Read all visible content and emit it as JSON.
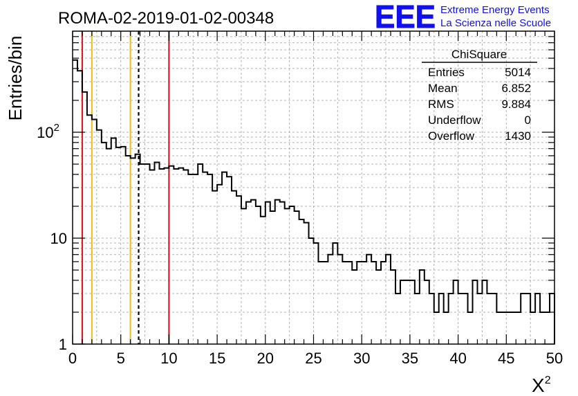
{
  "chart_data": {
    "type": "histogram",
    "title": "ROMA-02-2019-01-02-00348",
    "xlabel": "χ²",
    "ylabel": "Entries/bin",
    "xlim": [
      0,
      50
    ],
    "ylim": [
      1,
      900
    ],
    "yscale": "log",
    "grid": true,
    "bin_width": 0.5,
    "x_ticks": [
      0,
      5,
      10,
      15,
      20,
      25,
      30,
      35,
      40,
      45,
      50
    ],
    "y_ticks": [
      {
        "value": 1,
        "base": "1",
        "exp": ""
      },
      {
        "value": 10,
        "base": "10",
        "exp": ""
      },
      {
        "value": 100,
        "base": "10",
        "exp": "2"
      }
    ],
    "values": [
      480,
      380,
      240,
      145,
      132,
      105,
      80,
      70,
      88,
      72,
      73,
      60,
      57,
      62,
      50,
      50,
      44,
      52,
      45,
      46,
      48,
      45,
      46,
      44,
      40,
      40,
      50,
      42,
      40,
      28,
      32,
      42,
      38,
      28,
      25,
      19,
      22,
      23,
      20,
      16,
      22,
      18,
      23,
      22,
      19,
      20,
      18,
      15,
      14,
      10,
      9,
      6,
      6,
      7,
      9,
      7,
      6,
      6,
      5,
      6,
      6,
      7,
      6,
      5,
      6,
      7,
      5,
      3,
      4,
      4,
      4,
      3,
      5,
      4,
      3,
      2,
      3,
      2,
      3,
      4,
      3,
      3,
      2,
      4,
      3,
      4,
      3,
      3,
      2,
      2,
      2,
      2,
      2,
      3,
      3,
      2,
      3,
      2,
      2,
      3
    ],
    "vertical_lines": [
      {
        "x": 1,
        "color": "#e0181f",
        "style": "solid"
      },
      {
        "x": 2,
        "color": "#f2c01e",
        "style": "solid"
      },
      {
        "x": 6,
        "color": "#f2c01e",
        "style": "solid"
      },
      {
        "x": 6.852,
        "color": "#000000",
        "style": "dashed"
      },
      {
        "x": 10,
        "color": "#e0181f",
        "style": "solid"
      }
    ],
    "stats": {
      "title": "ChiSquare",
      "rows": [
        {
          "label": "Entries",
          "value": "5014"
        },
        {
          "label": "Mean",
          "value": "6.852"
        },
        {
          "label": "RMS",
          "value": "9.884"
        },
        {
          "label": "Underflow",
          "value": "0"
        },
        {
          "label": "Overflow",
          "value": "1430"
        }
      ]
    }
  },
  "logo": {
    "text": "EEE",
    "line1": "Extreme Energy Events",
    "line2": "La Scienza nelle Scuole",
    "color": "#1010f0"
  }
}
